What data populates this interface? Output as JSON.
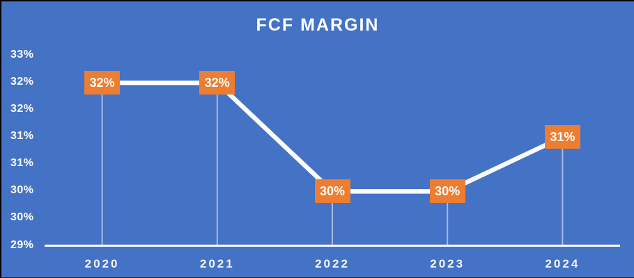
{
  "title": "FCF MARGIN",
  "colors": {
    "background": "#4472C4",
    "label_box": "#ED7D31",
    "series_line": "#FFFFFF",
    "axis_line": "#FFFFFF",
    "drop_line": "#C9D4EC",
    "text": "#FFFFFF"
  },
  "chart_data": {
    "type": "line",
    "title": "FCF MARGIN",
    "categories": [
      "2020",
      "2021",
      "2022",
      "2023",
      "2024"
    ],
    "series": [
      {
        "name": "FCF Margin",
        "values": [
          32,
          32,
          30,
          30,
          31
        ],
        "data_labels": [
          "32%",
          "32%",
          "30%",
          "30%",
          "31%"
        ]
      }
    ],
    "xlabel": "",
    "ylabel": "",
    "y_tick_labels": [
      "33%",
      "32%",
      "32%",
      "31%",
      "31%",
      "30%",
      "30%",
      "29%"
    ],
    "y_tick_values": [
      32.5,
      32.0,
      31.5,
      31.0,
      30.5,
      30.0,
      29.5,
      29.0
    ],
    "ylim": [
      29.0,
      32.5
    ],
    "grid": false,
    "legend_position": "none",
    "annotations": "data labels shown in orange boxes on each point; white drop lines from each point to the x-axis"
  }
}
